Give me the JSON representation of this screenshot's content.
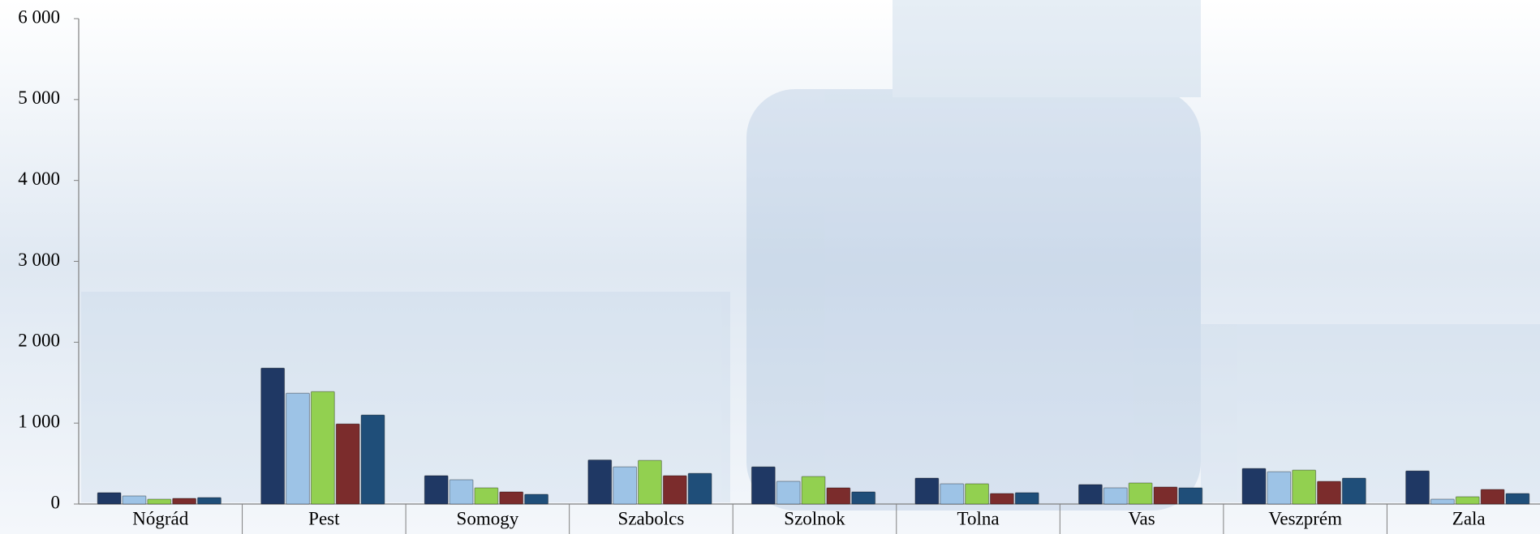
{
  "chart_data": {
    "type": "bar",
    "categories": [
      "Nógrád",
      "Pest",
      "Somogy",
      "Szabolcs",
      "Szolnok",
      "Tolna",
      "Vas",
      "Veszprém",
      "Zala"
    ],
    "series": [
      {
        "color": "#1f3864",
        "values": [
          140,
          1680,
          350,
          545,
          460,
          320,
          240,
          440,
          410
        ]
      },
      {
        "color": "#9dc3e6",
        "values": [
          100,
          1370,
          300,
          460,
          280,
          250,
          200,
          400,
          60
        ]
      },
      {
        "color": "#92d050",
        "values": [
          60,
          1390,
          200,
          540,
          340,
          250,
          260,
          420,
          90
        ]
      },
      {
        "color": "#7b2c2c",
        "values": [
          70,
          990,
          150,
          350,
          200,
          130,
          210,
          280,
          180
        ]
      },
      {
        "color": "#1f4e79",
        "values": [
          80,
          1100,
          120,
          380,
          150,
          140,
          200,
          320,
          130
        ]
      }
    ],
    "ylim": [
      0,
      6000
    ],
    "yticks": [
      0,
      {
        "value": 1000,
        "label": "1 000"
      },
      {
        "value": 2000,
        "label": "2 000"
      },
      {
        "value": 3000,
        "label": "3 000"
      },
      {
        "value": 4000,
        "label": "4 000"
      },
      {
        "value": 5000,
        "label": "5 000"
      },
      {
        "value": 6000,
        "label": "6 000"
      }
    ],
    "grid": false
  }
}
